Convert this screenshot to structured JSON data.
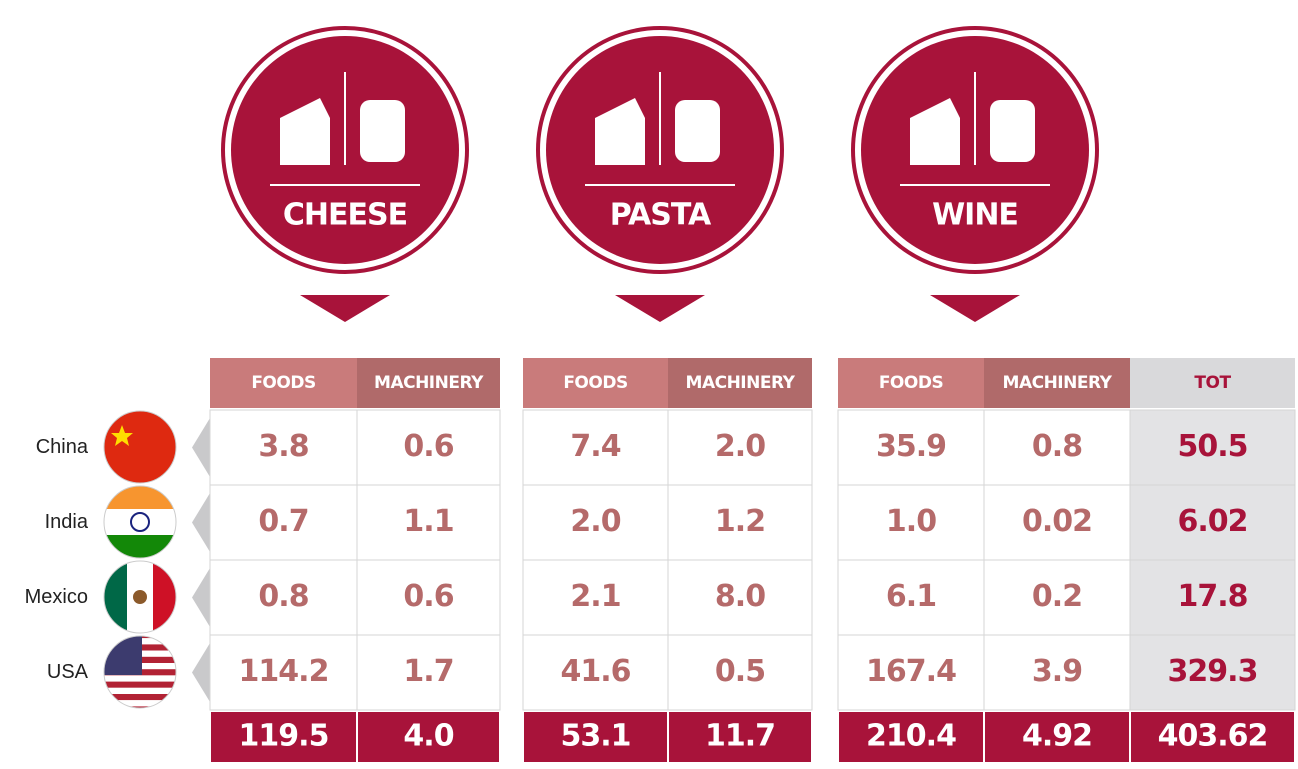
{
  "groups": [
    {
      "label": "CHEESE",
      "columns": [
        "FOODS",
        "MACHINERY"
      ]
    },
    {
      "label": "PASTA",
      "columns": [
        "FOODS",
        "MACHINERY"
      ]
    },
    {
      "label": "WINE",
      "columns": [
        "FOODS",
        "MACHINERY"
      ]
    }
  ],
  "total_column": "TOT",
  "rows": [
    {
      "country": "China",
      "values": [
        "3.8",
        "0.6",
        "7.4",
        "2.0",
        "35.9",
        "0.8",
        "50.5"
      ]
    },
    {
      "country": "India",
      "values": [
        "0.7",
        "1.1",
        "2.0",
        "1.2",
        "1.0",
        "0.02",
        "6.02"
      ]
    },
    {
      "country": "Mexico",
      "values": [
        "0.8",
        "0.6",
        "2.1",
        "8.0",
        "6.1",
        "0.2",
        "17.8"
      ]
    },
    {
      "country": "USA",
      "values": [
        "114.2",
        "1.7",
        "41.6",
        "0.5",
        "167.4",
        "3.9",
        "329.3"
      ]
    }
  ],
  "totals": [
    "119.5",
    "4.0",
    "53.1",
    "11.7",
    "210.4",
    "4.92",
    "403.62"
  ]
}
